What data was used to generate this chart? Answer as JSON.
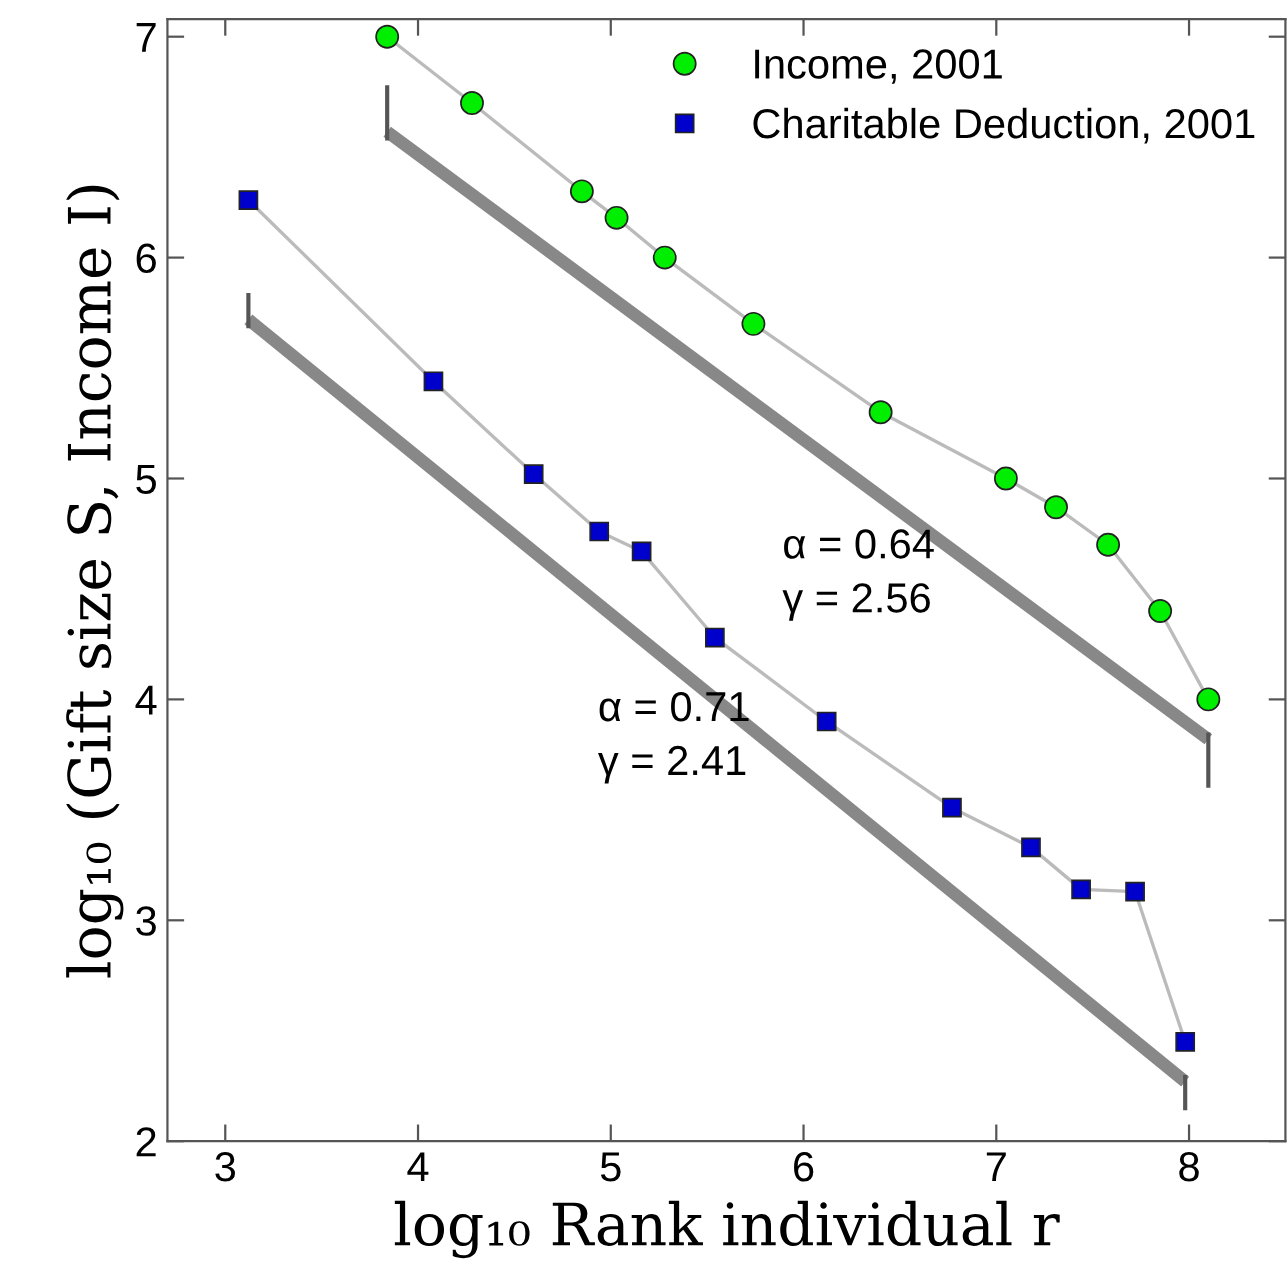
{
  "chart_data": {
    "type": "line",
    "xlabel": "log₁₀ Rank individual r",
    "ylabel": "log₁₀ (Gift size S, Income I)",
    "xlim": [
      2.7,
      8.5
    ],
    "xticks": [
      3,
      4,
      5,
      6,
      7,
      8
    ],
    "ylim": [
      2,
      7.08
    ],
    "yticks": [
      2,
      3,
      4,
      5,
      6,
      7
    ],
    "grid": false,
    "legend": "top right",
    "series": [
      {
        "name": "Income, 2001",
        "color": "#00ee00",
        "marker": "circle",
        "x": [
          3.84,
          4.28,
          4.85,
          5.03,
          5.28,
          5.74,
          6.4,
          7.05,
          7.31,
          7.58,
          7.85,
          8.1
        ],
        "values": [
          7.0,
          6.7,
          6.3,
          6.18,
          6.0,
          5.7,
          5.3,
          5.0,
          4.87,
          4.7,
          4.4,
          4.0
        ]
      },
      {
        "name": "Charitable Deduction, 2001",
        "color": "#0000cc",
        "marker": "square",
        "x": [
          3.12,
          4.08,
          4.6,
          4.94,
          5.16,
          5.54,
          6.12,
          6.77,
          7.18,
          7.44,
          7.72,
          7.98
        ],
        "values": [
          6.26,
          5.44,
          5.02,
          4.76,
          4.67,
          4.28,
          3.9,
          3.51,
          3.33,
          3.14,
          3.13,
          2.45
        ]
      },
      {
        "type": "line",
        "color": "#888888",
        "marker": "none",
        "x": [
          3.84,
          8.1
        ],
        "values": [
          6.57,
          3.82
        ],
        "errors": [
          [
            6.53,
            6.78
          ],
          [
            3.6,
            3.85
          ]
        ]
      },
      {
        "type": "line",
        "color": "#888888",
        "marker": "none",
        "x": [
          3.12,
          7.98
        ],
        "values": [
          5.72,
          2.27
        ],
        "errors": [
          [
            5.68,
            5.84
          ],
          [
            2.14,
            2.3
          ]
        ]
      }
    ],
    "annotations": [
      "α = 0.64\nγ = 2.56",
      "α = 0.71\nγ = 2.41"
    ]
  }
}
